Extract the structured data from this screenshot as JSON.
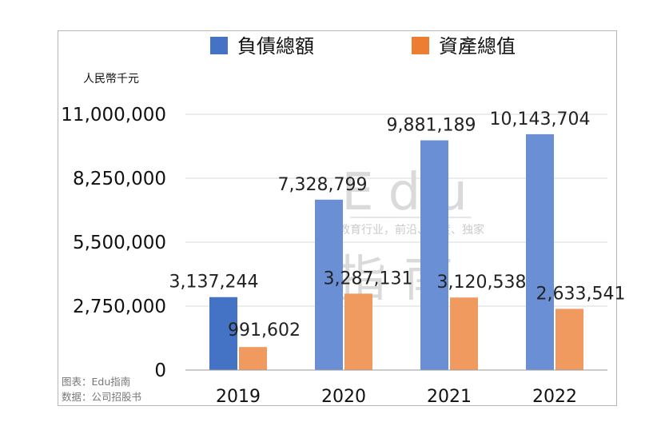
{
  "chart_data": {
    "type": "bar",
    "categories": [
      "2019",
      "2020",
      "2021",
      "2022"
    ],
    "series": [
      {
        "name": "負債總額",
        "color": "#6b8fd4",
        "values": [
          3137244,
          7328799,
          9881189,
          10143704
        ],
        "labels": [
          "3,137,244",
          "7,328,799",
          "9,881,189",
          "10,143,704"
        ]
      },
      {
        "name": "資產總值",
        "color": "#f09a60",
        "values": [
          991602,
          3287131,
          3120538,
          2633541
        ],
        "labels": [
          "991,602",
          "3,287,131",
          "3,120,538",
          "2,633,541"
        ]
      }
    ],
    "ylim": [
      0,
      11000000
    ],
    "yticks": [
      0,
      2750000,
      5500000,
      8250000,
      11000000
    ],
    "ytick_labels": [
      "0",
      "2,750,000",
      "5,500,000",
      "8,250,000",
      "11,000,000"
    ],
    "ylabel": "人民幣千元",
    "grid": true,
    "legend_position": "top"
  },
  "highlight_color": "#4472c4",
  "watermark": {
    "title": "Edu",
    "tagline": "教育行业，前沿、深度、独家",
    "name": "指南"
  },
  "credits": {
    "source_line1": "图表：Edu指南",
    "source_line2": "数据：公司招股书"
  }
}
